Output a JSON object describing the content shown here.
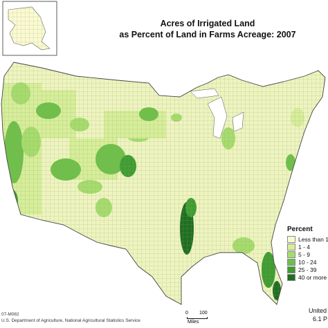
{
  "title": {
    "line1": "Acres of Irrigated Land",
    "line2": "as Percent of Land in Farms Acreage:  2007"
  },
  "legend": {
    "title": "Percent",
    "items": [
      {
        "label": "Less than 1",
        "color": "#fafad2"
      },
      {
        "label": "1 - 4",
        "color": "#d6ee9a"
      },
      {
        "label": "5 - 9",
        "color": "#a6dc6e"
      },
      {
        "label": "10 - 24",
        "color": "#6ec04a"
      },
      {
        "label": "25 - 39",
        "color": "#3f9c32"
      },
      {
        "label": "40 or more",
        "color": "#1f6e22"
      }
    ]
  },
  "scale": {
    "zero": "0",
    "hundred": "100",
    "unit": "Miles"
  },
  "footer": {
    "code": "07-M082",
    "source": "U.S. Department of Agriculture, National Agricultural Statistics Service"
  },
  "corner": {
    "line1": "United",
    "line2": "6.1 P"
  }
}
